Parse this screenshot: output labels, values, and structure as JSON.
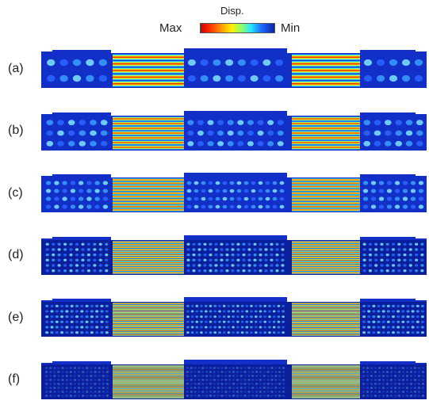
{
  "legend": {
    "title": "Disp.",
    "max_label": "Max",
    "min_label": "Min",
    "colors": [
      "#d00000",
      "#ff9a00",
      "#ffee00",
      "#8dff6a",
      "#26e6ff",
      "#1f6dff",
      "#0d1fa8"
    ]
  },
  "panels": [
    {
      "label": "(a)"
    },
    {
      "label": "(b)"
    },
    {
      "label": "(c)"
    },
    {
      "label": "(d)"
    },
    {
      "label": "(e)"
    },
    {
      "label": "(f)"
    }
  ]
}
